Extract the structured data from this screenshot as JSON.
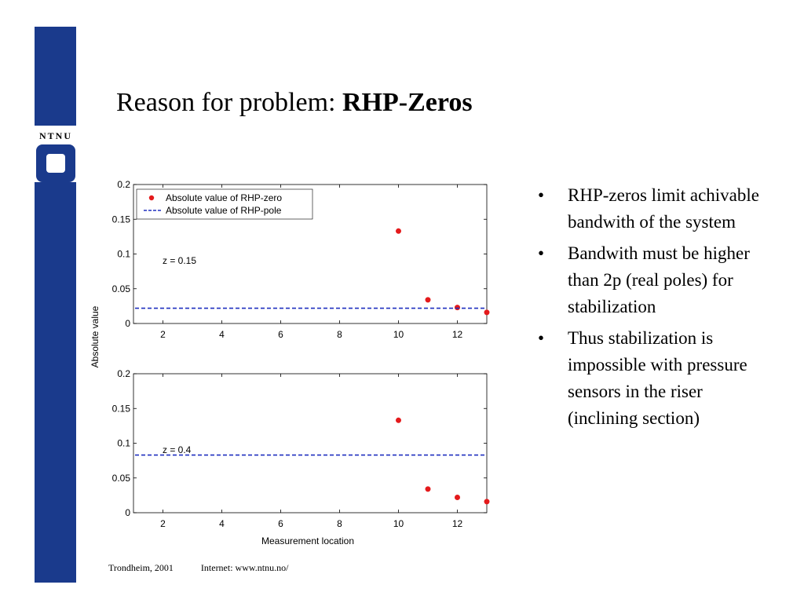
{
  "slide": {
    "title_plain": "Reason for problem: ",
    "title_bold": "RHP-Zeros",
    "logo_text": "NTNU",
    "bullets": [
      "RHP-zeros limit achivable bandwith of the system",
      "Bandwith must be higher than 2p (real poles) for stabilization",
      "Thus stabilization is impossible with pressure sensors in the riser (inclining section)"
    ],
    "bullet_symbol": "•",
    "footer_left": "Trondheim, 2001",
    "footer_right": "Internet: www.ntnu.no/"
  },
  "colors": {
    "brand_blue": "#1a3a8c",
    "zero_marker": "#e41a1c",
    "pole_line": "#1f2fbf"
  },
  "chart_data": [
    {
      "type": "scatter",
      "annotation": "z = 0.15",
      "xlabel": "",
      "ylabel": "Absolute value",
      "xlim": [
        1,
        13
      ],
      "ylim": [
        0,
        0.2
      ],
      "xticks": [
        2,
        4,
        6,
        8,
        10,
        12
      ],
      "yticks": [
        0,
        0.05,
        0.1,
        0.15,
        0.2
      ],
      "grid": false,
      "legend": {
        "placement": "top-left",
        "entries": [
          "Absolute value of RHP-zero",
          "Absolute value of RHP-pole"
        ]
      },
      "series": [
        {
          "name": "Absolute value of RHP-zero",
          "kind": "points",
          "x": [
            10,
            11,
            12,
            13
          ],
          "y": [
            0.133,
            0.034,
            0.023,
            0.016
          ]
        },
        {
          "name": "Absolute value of RHP-pole",
          "kind": "hline",
          "y": 0.022
        }
      ]
    },
    {
      "type": "scatter",
      "annotation": "z = 0.4",
      "xlabel": "Measurement location",
      "ylabel": "Absolute value",
      "xlim": [
        1,
        13
      ],
      "ylim": [
        0,
        0.2
      ],
      "xticks": [
        2,
        4,
        6,
        8,
        10,
        12
      ],
      "yticks": [
        0,
        0.05,
        0.1,
        0.15,
        0.2
      ],
      "grid": false,
      "series": [
        {
          "name": "Absolute value of RHP-zero",
          "kind": "points",
          "x": [
            10,
            11,
            12,
            13
          ],
          "y": [
            0.133,
            0.034,
            0.022,
            0.016
          ]
        },
        {
          "name": "Absolute value of RHP-pole",
          "kind": "hline",
          "y": 0.083
        }
      ]
    }
  ]
}
